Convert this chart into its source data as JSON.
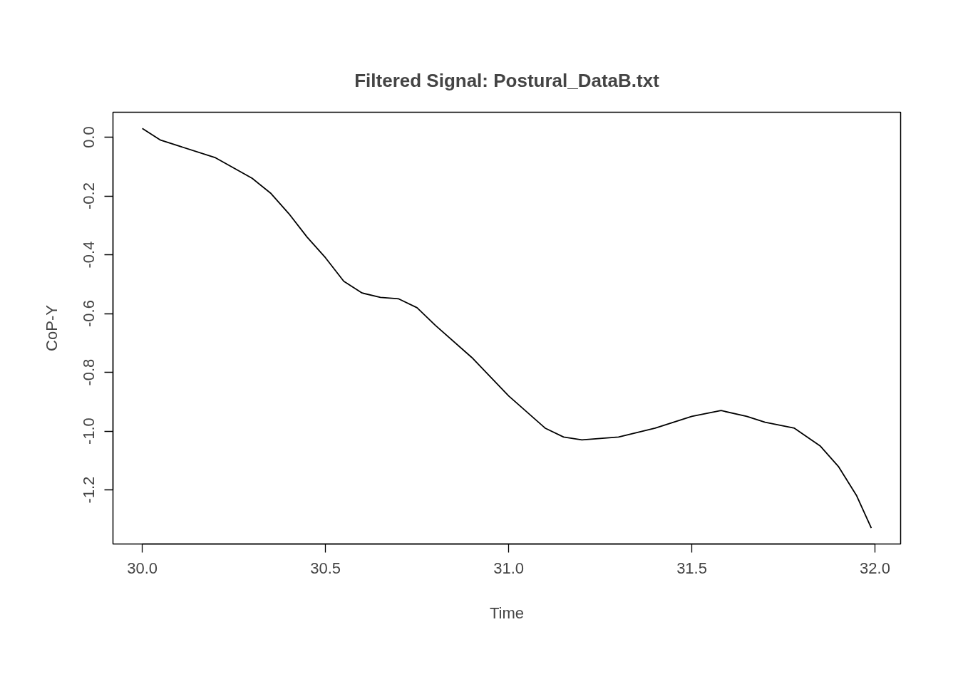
{
  "chart_data": {
    "type": "line",
    "title": "Filtered Signal: Postural_DataB.txt",
    "xlabel": "Time",
    "ylabel": "CoP-Y",
    "color": "#000000",
    "x": [
      30.0,
      30.05,
      30.1,
      30.2,
      30.3,
      30.35,
      30.4,
      30.45,
      30.5,
      30.55,
      30.6,
      30.65,
      30.7,
      30.75,
      30.8,
      30.9,
      31.0,
      31.1,
      31.15,
      31.2,
      31.3,
      31.4,
      31.5,
      31.58,
      31.65,
      31.7,
      31.78,
      31.85,
      31.9,
      31.95,
      31.99
    ],
    "values": [
      0.03,
      -0.01,
      -0.03,
      -0.07,
      -0.14,
      -0.19,
      -0.26,
      -0.34,
      -0.41,
      -0.49,
      -0.53,
      -0.545,
      -0.55,
      -0.58,
      -0.64,
      -0.75,
      -0.88,
      -0.99,
      -1.02,
      -1.03,
      -1.02,
      -0.99,
      -0.95,
      -0.93,
      -0.95,
      -0.97,
      -0.99,
      -1.05,
      -1.12,
      -1.22,
      -1.33
    ],
    "xlim": [
      29.92,
      32.07
    ],
    "ylim": [
      -1.384,
      0.085
    ],
    "xticks": [
      {
        "value": 30,
        "label": "30.0"
      },
      30.5,
      {
        "value": 31,
        "label": "31.0"
      },
      31.5,
      {
        "value": 32,
        "label": "32.0"
      }
    ],
    "yticks": [
      {
        "value": 0,
        "label": "0.0"
      },
      -0.2,
      -0.4,
      -0.6,
      -0.8,
      {
        "value": -1,
        "label": "-1.0"
      },
      -1.2
    ]
  }
}
